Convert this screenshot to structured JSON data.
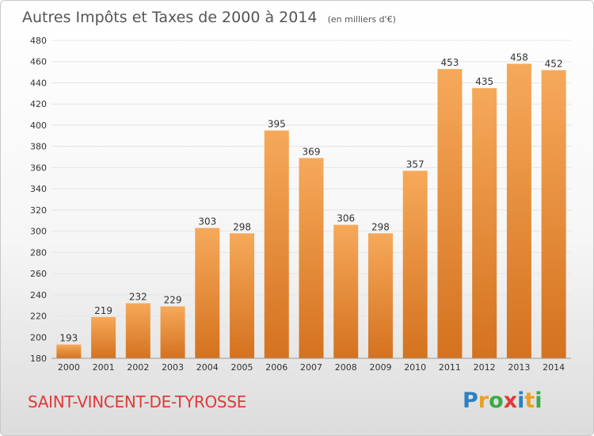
{
  "header": {
    "title": "Autres Impôts et Taxes de 2000 à 2014",
    "unit": "(en milliers d'€)"
  },
  "footer": {
    "city": "SAINT-VINCENT-DE-TYROSSE"
  },
  "logo": {
    "letters": [
      "P",
      "r",
      "o",
      "x",
      "i",
      "t",
      "i"
    ],
    "colors": [
      "#2d7fc1",
      "#e8a224",
      "#3daa47",
      "#e03a3a",
      "#2d7fc1",
      "#e8a224",
      "#3daa47"
    ]
  },
  "colors": {
    "bar_light": "#f6a95a",
    "bar_dark": "#d4721f",
    "city": "#e03a3a"
  },
  "chart_data": {
    "type": "bar",
    "title": "Autres Impôts et Taxes de 2000 à 2014",
    "subtitle": "(en milliers d'€)",
    "xlabel": "",
    "ylabel": "",
    "categories": [
      "2000",
      "2001",
      "2002",
      "2003",
      "2004",
      "2005",
      "2006",
      "2007",
      "2008",
      "2009",
      "2010",
      "2011",
      "2012",
      "2013",
      "2014"
    ],
    "values": [
      193,
      219,
      232,
      229,
      303,
      298,
      395,
      369,
      306,
      298,
      357,
      453,
      435,
      458,
      452
    ],
    "ylim": [
      180,
      480
    ],
    "yticks": [
      180,
      200,
      220,
      240,
      260,
      280,
      300,
      320,
      340,
      360,
      380,
      400,
      420,
      440,
      460,
      480
    ],
    "grid": true,
    "data_labels": true
  }
}
